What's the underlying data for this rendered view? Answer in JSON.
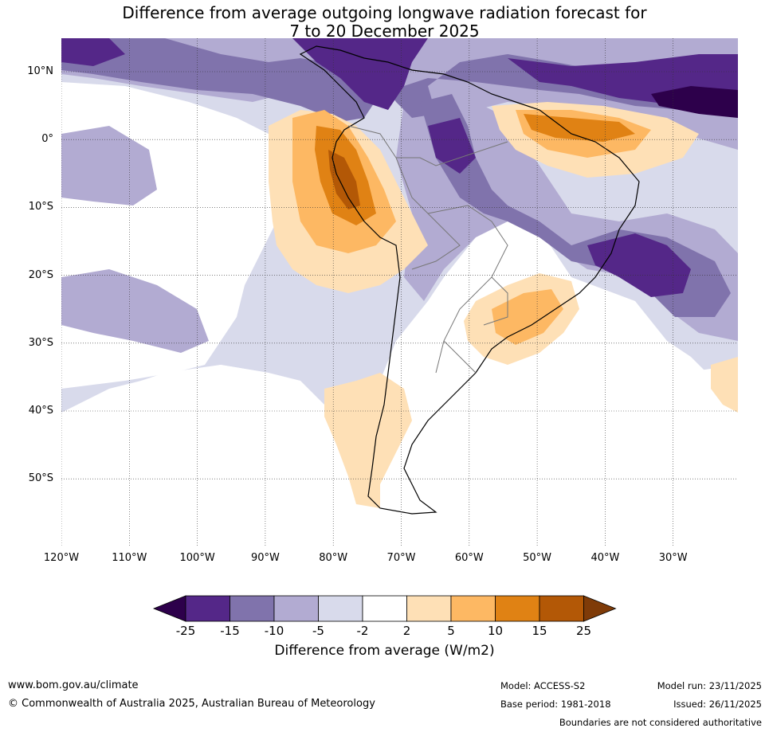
{
  "title": {
    "line1": "Difference from average outgoing longwave radiation forecast for",
    "line2": "7 to 20 December 2025"
  },
  "map": {
    "lat_labels": [
      "10°N",
      "0°",
      "10°S",
      "20°S",
      "30°S",
      "40°S",
      "50°S"
    ],
    "lon_labels": [
      "120°W",
      "110°W",
      "100°W",
      "90°W",
      "80°W",
      "70°W",
      "60°W",
      "50°W",
      "40°W",
      "30°W"
    ]
  },
  "colorbar": {
    "ticks": [
      "-25",
      "-15",
      "-10",
      "-5",
      "-2",
      "2",
      "5",
      "10",
      "15",
      "25"
    ],
    "colors": [
      "#2d004b",
      "#542788",
      "#8073ac",
      "#b2abd2",
      "#d8daeb",
      "#ffffff",
      "#fee0b6",
      "#fdb863",
      "#e08214",
      "#b35806",
      "#7f3b08"
    ],
    "label": "Difference from average (W/m2)"
  },
  "footer": {
    "website": "www.bom.gov.au/climate",
    "copyright": "© Commonwealth of Australia 2025, Australian Bureau of Meteorology",
    "model": "Model: ACCESS-S2",
    "base_period": "Base period: 1981-2018",
    "model_run": "Model run: 23/11/2025",
    "issued": "Issued: 26/11/2025",
    "disclaimer": "Boundaries are not considered authoritative"
  }
}
